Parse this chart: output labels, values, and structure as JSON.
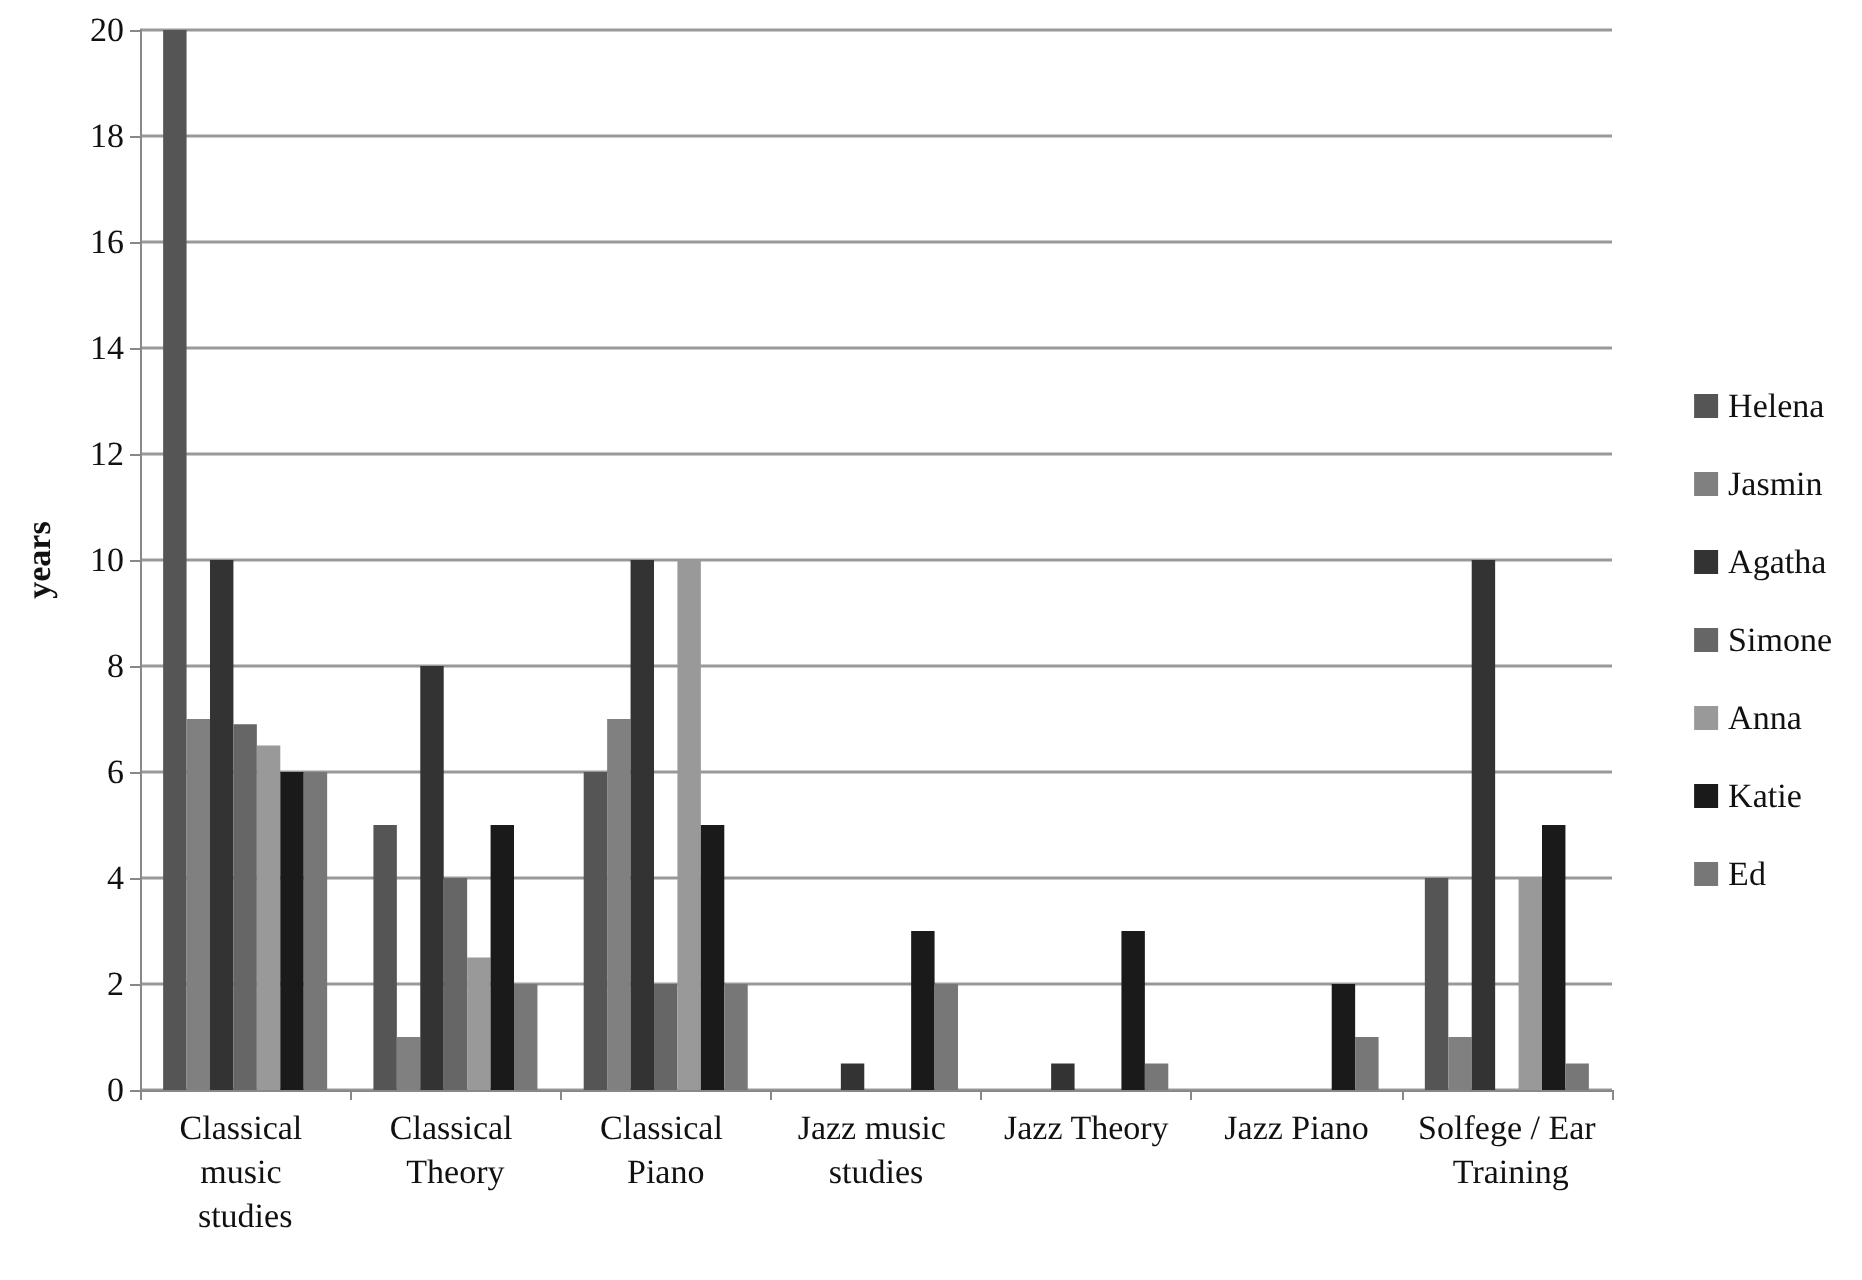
{
  "chart_data": {
    "type": "bar",
    "ylabel": "years",
    "categories": [
      "Classical music studies",
      "Classical Theory",
      "Classical Piano",
      "Jazz music studies",
      "Jazz Theory",
      "Jazz Piano",
      "Solfege / Ear Training"
    ],
    "series": [
      {
        "name": "Helena",
        "color": "#555555",
        "values": [
          20,
          5,
          6,
          0,
          0,
          0,
          4
        ]
      },
      {
        "name": "Jasmin",
        "color": "#808080",
        "values": [
          7,
          1,
          7,
          0,
          0,
          0,
          1
        ]
      },
      {
        "name": "Agatha",
        "color": "#333333",
        "values": [
          10,
          8,
          10,
          0.5,
          0.5,
          0,
          10
        ]
      },
      {
        "name": "Simone",
        "color": "#666666",
        "values": [
          6.9,
          4,
          2,
          0,
          0,
          0,
          0
        ]
      },
      {
        "name": "Anna",
        "color": "#999999",
        "values": [
          6.5,
          2.5,
          10,
          0,
          0,
          0,
          4
        ]
      },
      {
        "name": "Katie",
        "color": "#1a1a1a",
        "values": [
          6,
          5,
          5,
          3,
          3,
          2,
          5
        ]
      },
      {
        "name": "Ed",
        "color": "#777777",
        "values": [
          6,
          2,
          2,
          2,
          0.5,
          1,
          0.5
        ]
      }
    ],
    "ylim": [
      0,
      20
    ],
    "yticks": [
      0,
      2,
      4,
      6,
      8,
      10,
      12,
      14,
      16,
      18,
      20
    ],
    "grid": "y",
    "legend": "right"
  }
}
